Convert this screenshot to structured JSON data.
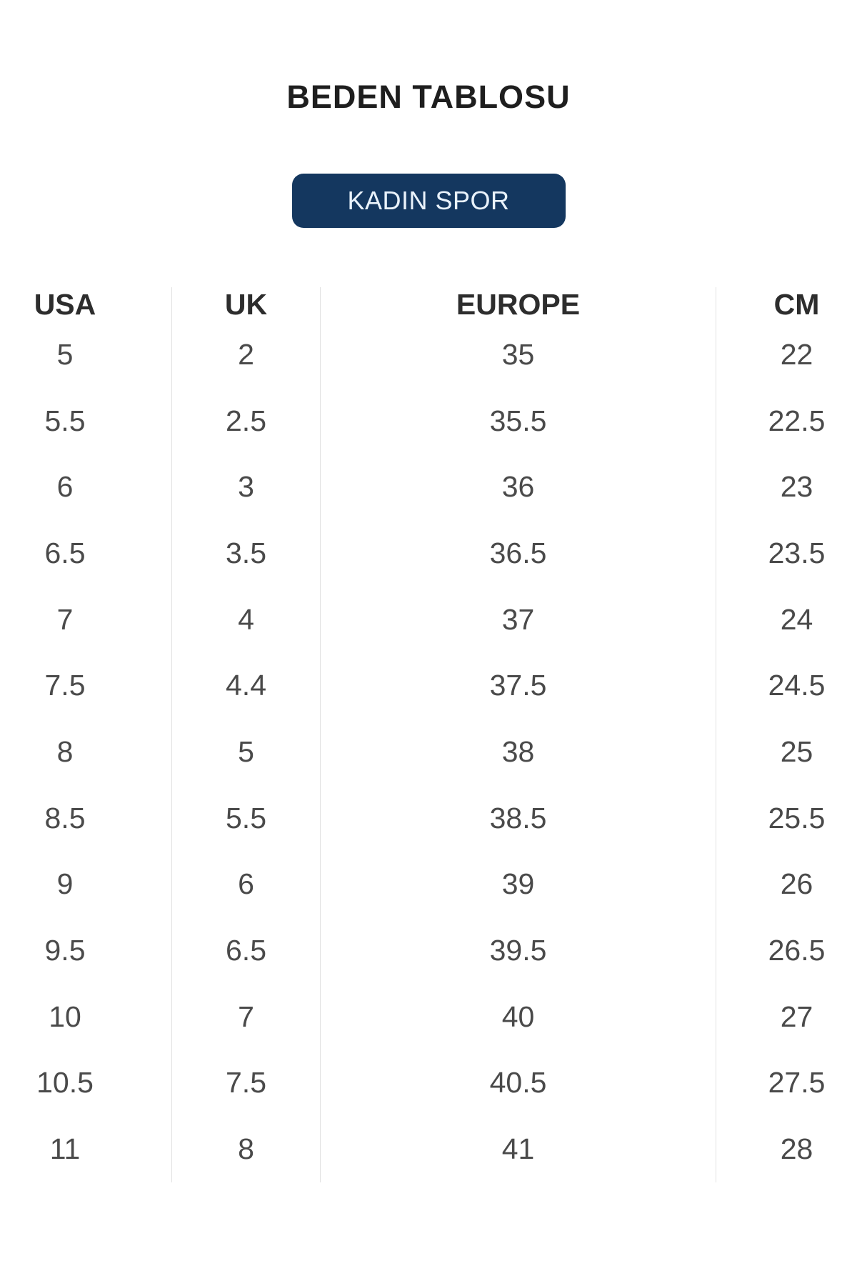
{
  "header": {
    "title": "BEDEN TABLOSU",
    "category_button_label": "KADIN SPOR"
  },
  "table": {
    "headers": [
      "USA",
      "UK",
      "EUROPE",
      "CM"
    ],
    "rows": [
      [
        "5",
        "2",
        "35",
        "22"
      ],
      [
        "5.5",
        "2.5",
        "35.5",
        "22.5"
      ],
      [
        "6",
        "3",
        "36",
        "23"
      ],
      [
        "6.5",
        "3.5",
        "36.5",
        "23.5"
      ],
      [
        "7",
        "4",
        "37",
        "24"
      ],
      [
        "7.5",
        "4.4",
        "37.5",
        "24.5"
      ],
      [
        "8",
        "5",
        "38",
        "25"
      ],
      [
        "8.5",
        "5.5",
        "38.5",
        "25.5"
      ],
      [
        "9",
        "6",
        "39",
        "26"
      ],
      [
        "9.5",
        "6.5",
        "39.5",
        "26.5"
      ],
      [
        "10",
        "7",
        "40",
        "27"
      ],
      [
        "10.5",
        "7.5",
        "40.5",
        "27.5"
      ],
      [
        "11",
        "8",
        "41",
        "28"
      ]
    ]
  },
  "colors": {
    "title_text": "#1e1e1e",
    "button_bg": "#14375f",
    "button_text": "#e9f2fb",
    "header_text": "#2d2d2d",
    "cell_text": "#4a4a4a",
    "divider": "#e2e2e2"
  }
}
